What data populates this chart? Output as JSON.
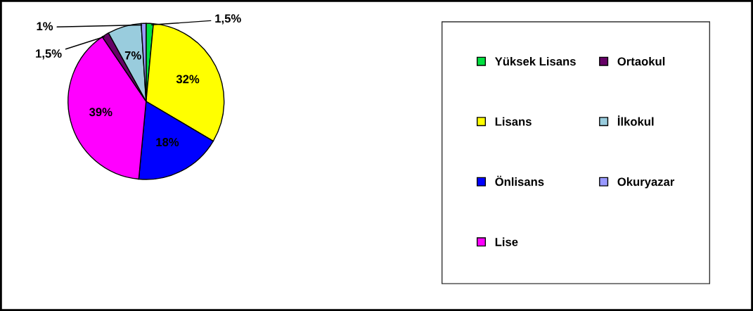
{
  "chart_data": {
    "type": "pie",
    "categories": [
      "Yüksek Lisans",
      "Lisans",
      "Önlisans",
      "Lise",
      "Ortaokul",
      "İlkokul",
      "Okuryazar"
    ],
    "values": [
      1.5,
      32,
      18,
      39,
      1.5,
      7,
      1
    ],
    "value_labels": [
      "1,5%",
      "32%",
      "18%",
      "39%",
      "1,5%",
      "7%",
      "1%"
    ],
    "colors": [
      "#00e040",
      "#ffff00",
      "#0000ff",
      "#ff00ff",
      "#660066",
      "#99ccdd",
      "#9999ff"
    ],
    "legend": "right"
  }
}
